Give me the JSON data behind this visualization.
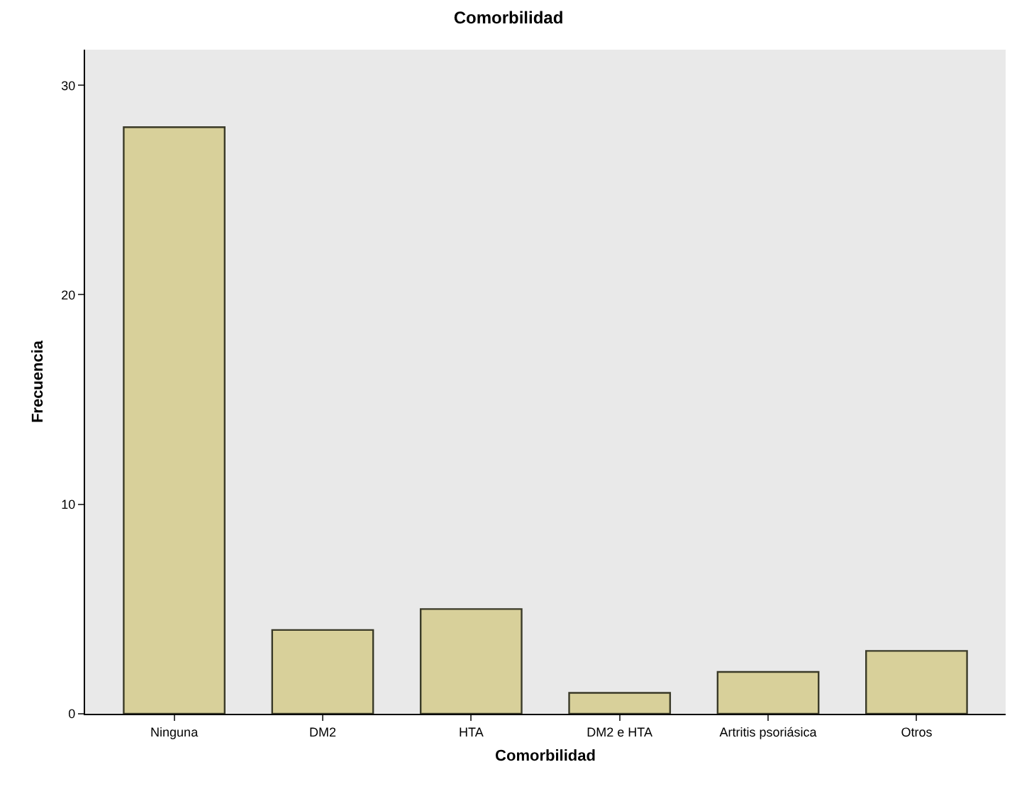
{
  "chart_data": {
    "type": "bar",
    "title": "Comorbilidad",
    "xlabel": "Comorbilidad",
    "ylabel": "Frecuencia",
    "categories": [
      "Ninguna",
      "DM2",
      "HTA",
      "DM2 e HTA",
      "Artritis psoriásica",
      "Otros"
    ],
    "values": [
      28,
      4,
      5,
      1,
      2,
      3
    ],
    "color": "#d8d09a",
    "ylim": [
      0,
      31.7
    ],
    "yticks": [
      0,
      10,
      20,
      30
    ],
    "grid": false,
    "legend": false
  }
}
